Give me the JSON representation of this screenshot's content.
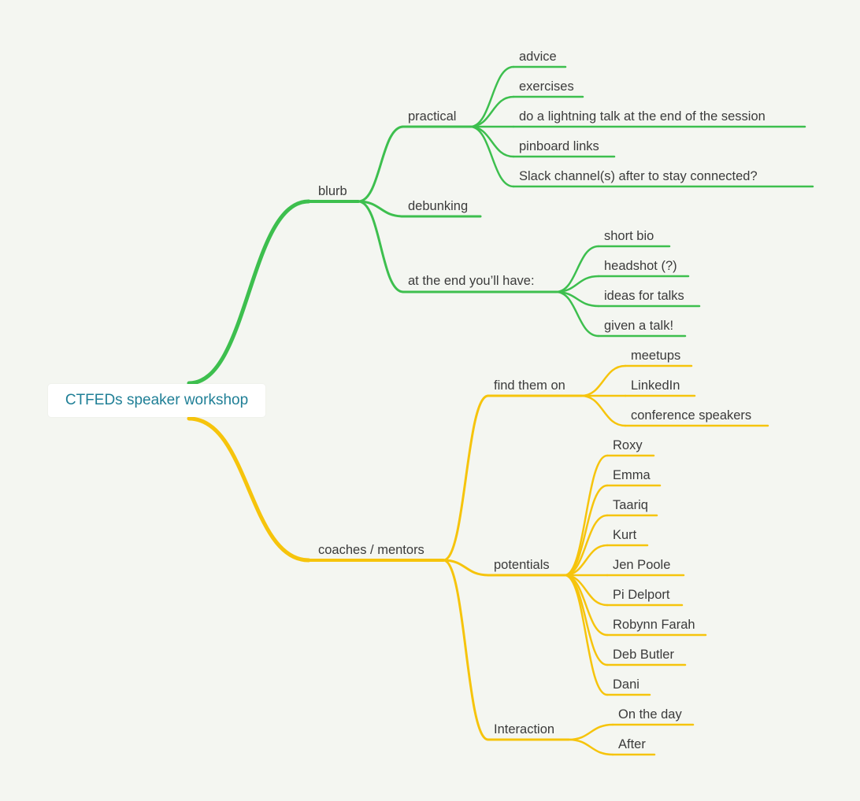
{
  "colors": {
    "background": "#f4f6f1",
    "green_branch": "#3dbf4e",
    "yellow_branch": "#f6c40c",
    "root_text": "#1f7f96",
    "node_text": "#3b3b3b"
  },
  "root": {
    "label": "CTFEDs speaker workshop"
  },
  "branches": {
    "blurb": {
      "label": "blurb",
      "practical": {
        "label": "practical",
        "items": [
          "advice",
          "exercises",
          "do a lightning talk at the end of the session",
          "pinboard links",
          "Slack channel(s) after to stay connected?"
        ]
      },
      "debunking": {
        "label": "debunking"
      },
      "end": {
        "label": "at the end you’ll have:",
        "items": [
          "short bio",
          "headshot (?)",
          "ideas for talks",
          "given a talk!"
        ]
      }
    },
    "coaches": {
      "label": "coaches / mentors",
      "find": {
        "label": "find them on",
        "items": [
          "meetups",
          "LinkedIn",
          "conference speakers"
        ]
      },
      "potentials": {
        "label": "potentials",
        "items": [
          "Roxy",
          "Emma",
          "Taariq",
          "Kurt",
          "Jen Poole",
          "Pi Delport",
          "Robynn Farah",
          "Deb Butler",
          "Dani"
        ]
      },
      "interaction": {
        "label": "Interaction",
        "items": [
          "On the day",
          "After"
        ]
      }
    }
  }
}
